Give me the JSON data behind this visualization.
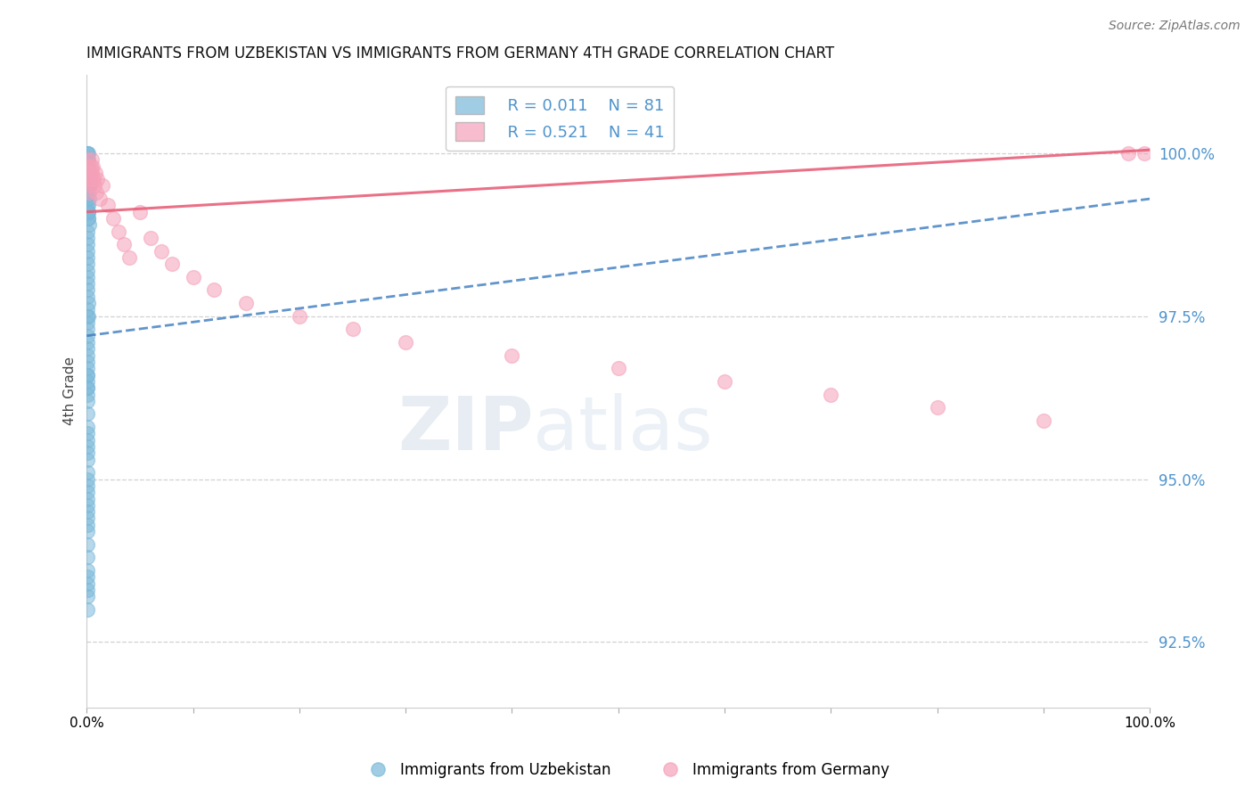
{
  "title": "IMMIGRANTS FROM UZBEKISTAN VS IMMIGRANTS FROM GERMANY 4TH GRADE CORRELATION CHART",
  "source": "Source: ZipAtlas.com",
  "ylabel": "4th Grade",
  "xlim": [
    0.0,
    100.0
  ],
  "ylim": [
    91.5,
    101.2
  ],
  "yticks": [
    92.5,
    95.0,
    97.5,
    100.0
  ],
  "ytick_labels": [
    "92.5%",
    "95.0%",
    "97.5%",
    "100.0%"
  ],
  "legend_r_blue": "R = 0.011",
  "legend_n_blue": "N = 81",
  "legend_r_pink": "R = 0.521",
  "legend_n_pink": "N = 41",
  "legend_label_blue": "Immigrants from Uzbekistan",
  "legend_label_pink": "Immigrants from Germany",
  "blue_color": "#7ab8d9",
  "pink_color": "#f5a0b8",
  "blue_line_color": "#3a7bbf",
  "pink_line_color": "#e8607a",
  "text_color_blue": "#4f94cd",
  "watermark_color": "#d0dce8",
  "background_color": "#ffffff",
  "blue_trend_x0": 0.0,
  "blue_trend_x1": 100.0,
  "blue_trend_y0": 97.2,
  "blue_trend_y1": 99.3,
  "pink_trend_x0": 0.0,
  "pink_trend_x1": 100.0,
  "pink_trend_y0": 99.1,
  "pink_trend_y1": 100.05,
  "blue_scatter_x": [
    0.05,
    0.08,
    0.1,
    0.12,
    0.15,
    0.1,
    0.08,
    0.06,
    0.04,
    0.07,
    0.09,
    0.11,
    0.13,
    0.06,
    0.08,
    0.04,
    0.06,
    0.08,
    0.1,
    0.12,
    0.05,
    0.07,
    0.09,
    0.06,
    0.08,
    0.04,
    0.06,
    0.08,
    0.1,
    0.12,
    0.03,
    0.05,
    0.07,
    0.09,
    0.04,
    0.06,
    0.08,
    0.03,
    0.05,
    0.07,
    0.04,
    0.06,
    0.08,
    0.03,
    0.05,
    0.04,
    0.06,
    0.03,
    0.05,
    0.04,
    0.06,
    0.03,
    0.05,
    0.04,
    0.03,
    0.05,
    0.04,
    0.06,
    0.03,
    0.05,
    0.04,
    0.03,
    0.05,
    0.04,
    0.06,
    0.03,
    0.05,
    0.04,
    0.03,
    0.05,
    0.04,
    0.03,
    0.05,
    0.04,
    0.03,
    0.2,
    0.25,
    0.18,
    0.15,
    0.22,
    0.12
  ],
  "blue_scatter_y": [
    100.0,
    99.9,
    100.0,
    99.8,
    99.9,
    99.7,
    99.8,
    99.9,
    100.0,
    99.7,
    99.6,
    99.5,
    99.4,
    99.8,
    99.6,
    99.5,
    99.3,
    99.2,
    99.1,
    99.0,
    98.8,
    98.6,
    98.4,
    98.7,
    98.5,
    98.3,
    98.1,
    97.9,
    97.7,
    97.5,
    98.2,
    98.0,
    97.8,
    97.6,
    97.4,
    97.2,
    97.0,
    97.5,
    97.3,
    97.1,
    96.8,
    96.6,
    96.4,
    96.9,
    96.7,
    96.5,
    96.3,
    96.6,
    96.4,
    96.2,
    96.0,
    95.8,
    95.6,
    95.4,
    95.7,
    95.5,
    95.3,
    95.1,
    95.0,
    94.8,
    94.6,
    94.9,
    94.7,
    94.5,
    94.3,
    94.4,
    94.2,
    94.0,
    93.8,
    93.6,
    93.4,
    93.2,
    93.0,
    93.5,
    93.3,
    99.5,
    99.3,
    99.2,
    99.0,
    98.9,
    99.1
  ],
  "pink_scatter_x": [
    0.05,
    0.1,
    0.15,
    0.2,
    0.25,
    0.3,
    0.35,
    0.4,
    0.45,
    0.5,
    0.55,
    0.6,
    0.7,
    0.8,
    0.9,
    1.0,
    1.2,
    1.5,
    2.0,
    2.5,
    3.0,
    3.5,
    4.0,
    5.0,
    6.0,
    7.0,
    8.0,
    10.0,
    12.0,
    15.0,
    20.0,
    25.0,
    30.0,
    40.0,
    50.0,
    60.0,
    70.0,
    80.0,
    90.0,
    98.0,
    99.5
  ],
  "pink_scatter_y": [
    99.9,
    99.8,
    99.6,
    99.4,
    99.7,
    99.5,
    99.8,
    99.6,
    99.9,
    99.7,
    99.8,
    99.6,
    99.5,
    99.7,
    99.4,
    99.6,
    99.3,
    99.5,
    99.2,
    99.0,
    98.8,
    98.6,
    98.4,
    99.1,
    98.7,
    98.5,
    98.3,
    98.1,
    97.9,
    97.7,
    97.5,
    97.3,
    97.1,
    96.9,
    96.7,
    96.5,
    96.3,
    96.1,
    95.9,
    100.0,
    100.0
  ]
}
